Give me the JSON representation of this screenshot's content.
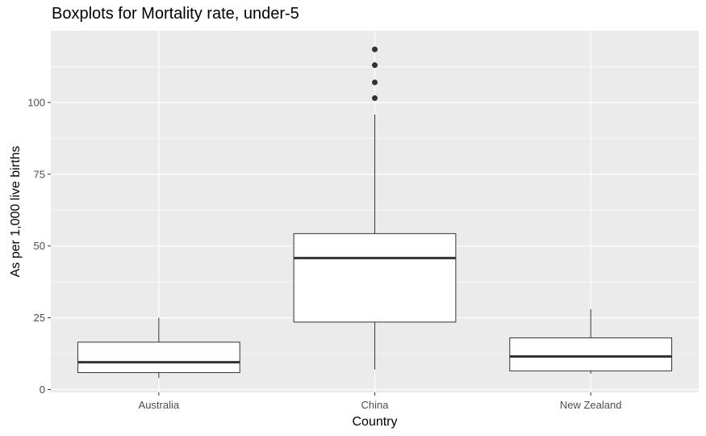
{
  "chart_data": {
    "type": "boxplot",
    "title": "Boxplots for Mortality rate, under-5",
    "xlabel": "Country",
    "ylabel": "As per 1,000 live births",
    "ylim": [
      -1,
      125
    ],
    "yticks": [
      0,
      25,
      50,
      75,
      100
    ],
    "grid": true,
    "categories": [
      "Australia",
      "China",
      "New Zealand"
    ],
    "boxes": [
      {
        "category": "Australia",
        "min": 4,
        "q1": 5.9,
        "median": 9.5,
        "q3": 16.5,
        "max": 25,
        "outliers": []
      },
      {
        "category": "China",
        "min": 7,
        "q1": 23.5,
        "median": 45.8,
        "q3": 54.3,
        "max": 95.8,
        "outliers": [
          101.5,
          107,
          113,
          118.5
        ]
      },
      {
        "category": "New Zealand",
        "min": 5.5,
        "q1": 6.5,
        "median": 11.5,
        "q3": 18,
        "max": 28,
        "outliers": []
      }
    ],
    "colors": {
      "panel_background": "#ebebeb",
      "grid_major": "#ffffff",
      "box_fill": "#ffffff",
      "box_stroke": "#333333",
      "median": "#333333",
      "outlier": "#333333"
    }
  }
}
